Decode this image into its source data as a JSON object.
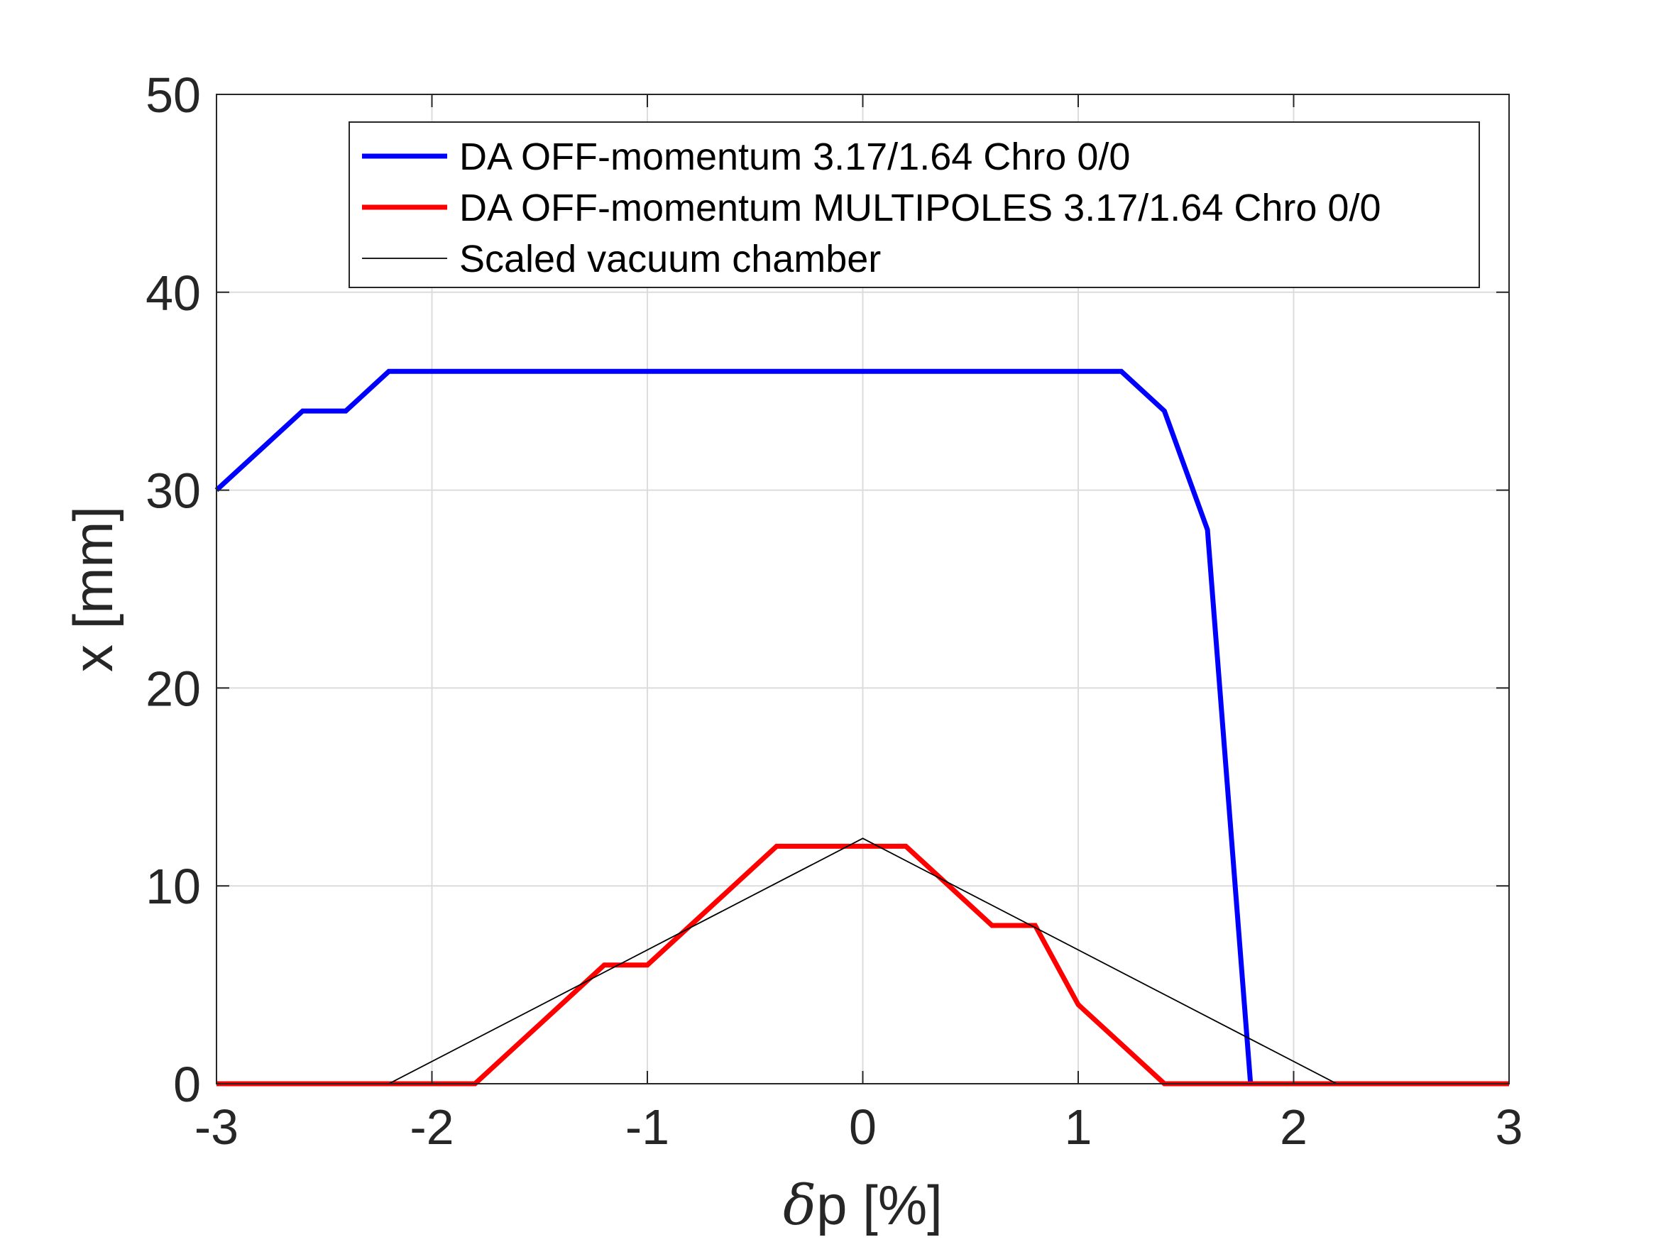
{
  "chart_data": {
    "type": "line",
    "xlabel_symbol": "δ",
    "xlabel_rest": "p [%]",
    "ylabel": "x [mm]",
    "xlim": [
      -3,
      3
    ],
    "ylim": [
      0,
      50
    ],
    "xticks": [
      -3,
      -2,
      -1,
      0,
      1,
      2,
      3
    ],
    "yticks": [
      0,
      10,
      20,
      30,
      40,
      50
    ],
    "xtick_labels": [
      "-3",
      "-2",
      "-1",
      "0",
      "1",
      "2",
      "3"
    ],
    "ytick_labels": [
      "0",
      "10",
      "20",
      "30",
      "40",
      "50"
    ],
    "grid": true,
    "legend_position": "top-center",
    "series": [
      {
        "name": "DA OFF-momentum 3.17/1.64 Chro 0/0",
        "color": "#0000ff",
        "x": [
          -3.0,
          -2.6,
          -2.4,
          -2.2,
          -2.0,
          -1.0,
          0.0,
          1.0,
          1.2,
          1.4,
          1.6,
          1.8
        ],
        "y": [
          30,
          34,
          34,
          36,
          36,
          36,
          36,
          36,
          36,
          34,
          28,
          0
        ]
      },
      {
        "name": "DA OFF-momentum MULTIPOLES 3.17/1.64 Chro 0/0",
        "color": "#ff0000",
        "x": [
          -3.0,
          -2.0,
          -1.8,
          -1.6,
          -1.4,
          -1.2,
          -1.0,
          -0.8,
          -0.6,
          -0.4,
          -0.2,
          0.0,
          0.2,
          0.4,
          0.6,
          0.8,
          1.0,
          1.2,
          1.4,
          1.6,
          2.0,
          3.0
        ],
        "y": [
          0,
          0,
          0,
          2,
          4,
          6,
          6,
          8,
          10,
          12,
          12,
          12,
          12,
          10,
          8,
          8,
          4,
          2,
          0,
          0,
          0,
          0
        ]
      },
      {
        "name": "Scaled vacuum chamber",
        "color": "#000000",
        "x": [
          -3.0,
          -2.2,
          0.0,
          2.2,
          3.0
        ],
        "y": [
          0,
          0,
          12.4,
          0,
          0
        ]
      }
    ]
  }
}
